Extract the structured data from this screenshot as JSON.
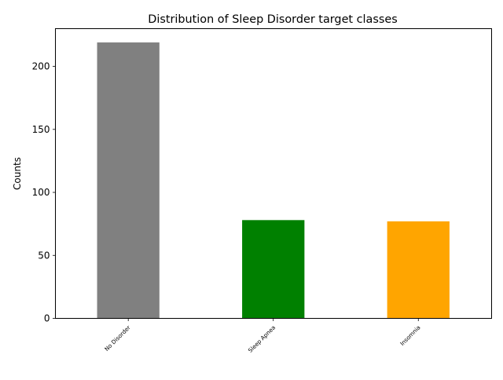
{
  "chart_data": {
    "type": "bar",
    "title": "Distribution of Sleep Disorder target classes",
    "xlabel": "",
    "ylabel": "Counts",
    "categories": [
      "No Disorder",
      "Sleep Apnea",
      "Insomnia"
    ],
    "values": [
      219,
      78,
      77
    ],
    "colors": [
      "#808080",
      "#008000",
      "#ffa500"
    ],
    "ylim": [
      0,
      229.95
    ],
    "yticks": [
      0,
      50,
      100,
      150,
      200
    ],
    "grid": false,
    "legend": "none",
    "xtick_rotation": 45
  }
}
